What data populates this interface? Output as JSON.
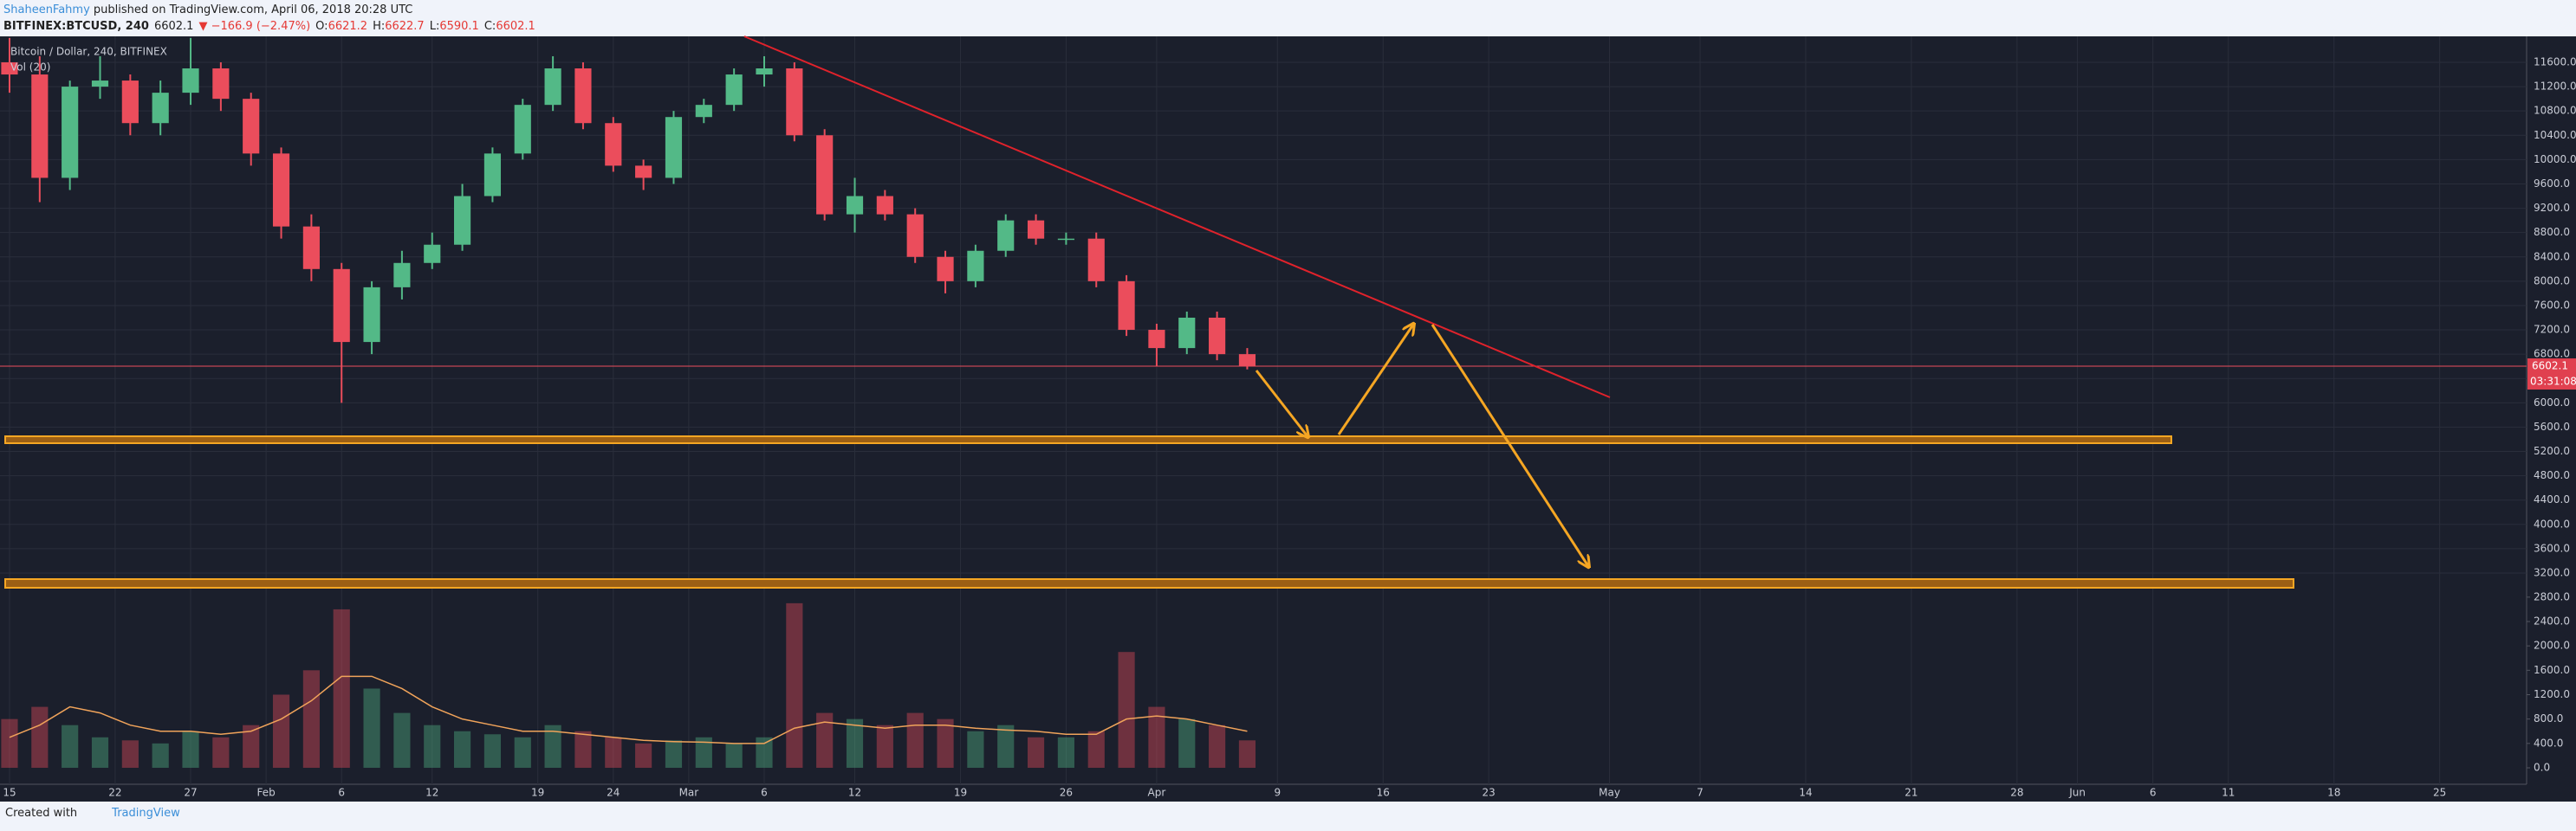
{
  "header": {
    "author": "ShaheenFahmy",
    "published": "published on TradingView.com, April 06, 2018 20:28 UTC",
    "symbol": "BITFINEX:BTCUSD, 240",
    "price": "6602.1",
    "change": "▼ −166.9 (−2.47%)",
    "ohlc": [
      {
        "k": "O:",
        "v": "6621.2"
      },
      {
        "k": "H:",
        "v": "6622.7"
      },
      {
        "k": "L:",
        "v": "6590.1"
      },
      {
        "k": "C:",
        "v": "6602.1"
      }
    ]
  },
  "chart_data": {
    "type": "candlestick",
    "title": "Bitcoin / Dollar, 240, BITFINEX",
    "up_color": "#53b987",
    "down_color": "#eb4d5c",
    "grid": true,
    "x": [
      0,
      2,
      4,
      6,
      8,
      10,
      12,
      14,
      16,
      18,
      20,
      22,
      24,
      26,
      28,
      30,
      32,
      34,
      36,
      38,
      40,
      42,
      44,
      46,
      48,
      50,
      52,
      54,
      56,
      58,
      60,
      62,
      64,
      66,
      68,
      70,
      72,
      74,
      76,
      78,
      80,
      82
    ],
    "open": [
      11600,
      11400,
      9700,
      11200,
      11300,
      10600,
      11100,
      11500,
      11000,
      10100,
      8900,
      8200,
      7000,
      7900,
      8300,
      8600,
      9400,
      10100,
      10900,
      11500,
      10600,
      9900,
      9700,
      10700,
      10900,
      11400,
      11500,
      10400,
      9100,
      9400,
      9100,
      8400,
      8000,
      8500,
      9000,
      8700,
      8700,
      8000,
      7200,
      6900,
      7400,
      6800
    ],
    "high": [
      12000,
      11700,
      11300,
      11700,
      11400,
      11300,
      12000,
      11600,
      11100,
      10200,
      9100,
      8300,
      8000,
      8500,
      8800,
      9600,
      10200,
      11000,
      11700,
      11600,
      10700,
      10000,
      10800,
      11000,
      11500,
      11700,
      11600,
      10500,
      9700,
      9500,
      9200,
      8500,
      8600,
      9100,
      9100,
      8800,
      8800,
      8100,
      7300,
      7500,
      7500,
      6900
    ],
    "low": [
      11100,
      9300,
      9500,
      11000,
      10400,
      10400,
      10900,
      10800,
      9900,
      8700,
      8000,
      6000,
      6800,
      7700,
      8200,
      8500,
      9300,
      10000,
      10800,
      10500,
      9800,
      9500,
      9600,
      10600,
      10800,
      11200,
      10300,
      9000,
      8800,
      9000,
      8300,
      7800,
      7900,
      8400,
      8600,
      8600,
      7900,
      7100,
      6600,
      6800,
      6700,
      6550
    ],
    "close": [
      11400,
      9700,
      11200,
      11300,
      10600,
      11100,
      11500,
      11000,
      10100,
      8900,
      8200,
      7000,
      7900,
      8300,
      8600,
      9400,
      10100,
      10900,
      11500,
      10600,
      9900,
      9700,
      10700,
      10900,
      11400,
      11500,
      10400,
      9100,
      9400,
      9100,
      8400,
      8000,
      8500,
      9000,
      8700,
      8700,
      8000,
      7200,
      6900,
      7400,
      6800,
      6600
    ],
    "volume": {
      "name": "Vol (20)",
      "axis": "y2",
      "ma_color": "#f0a35a",
      "values": [
        800,
        1000,
        700,
        500,
        450,
        400,
        600,
        500,
        700,
        1200,
        1600,
        2600,
        1300,
        900,
        700,
        600,
        550,
        500,
        700,
        600,
        500,
        400,
        450,
        500,
        400,
        500,
        2700,
        900,
        800,
        700,
        900,
        800,
        600,
        700,
        500,
        500,
        600,
        1900,
        1000,
        800,
        700,
        450
      ],
      "ma_values": [
        500,
        700,
        1000,
        900,
        700,
        600,
        600,
        550,
        600,
        800,
        1100,
        1500,
        1500,
        1300,
        1000,
        800,
        700,
        600,
        600,
        550,
        500,
        450,
        430,
        420,
        400,
        400,
        650,
        750,
        700,
        650,
        700,
        700,
        650,
        620,
        600,
        550,
        550,
        800,
        850,
        800,
        700,
        600
      ]
    },
    "last_price": 6602.1,
    "countdown": "03:31:08",
    "xlim": [
      -0.63,
      166.76
    ],
    "xticks": [
      {
        "value": 0,
        "label": "15"
      },
      {
        "value": 7,
        "label": "22"
      },
      {
        "value": 12,
        "label": "27"
      },
      {
        "value": 17,
        "label": "Feb"
      },
      {
        "value": 22,
        "label": "6"
      },
      {
        "value": 28,
        "label": "12"
      },
      {
        "value": 35,
        "label": "19"
      },
      {
        "value": 40,
        "label": "24"
      },
      {
        "value": 45,
        "label": "Mar"
      },
      {
        "value": 50,
        "label": "6"
      },
      {
        "value": 56,
        "label": "12"
      },
      {
        "value": 63,
        "label": "19"
      },
      {
        "value": 70,
        "label": "26"
      },
      {
        "value": 76,
        "label": "Apr"
      },
      {
        "value": 84,
        "label": "9"
      },
      {
        "value": 91,
        "label": "16"
      },
      {
        "value": 98,
        "label": "23"
      },
      {
        "value": 106,
        "label": "May"
      },
      {
        "value": 112,
        "label": "7"
      },
      {
        "value": 119,
        "label": "14"
      },
      {
        "value": 126,
        "label": "21"
      },
      {
        "value": 133,
        "label": "28"
      },
      {
        "value": 137,
        "label": "Jun"
      },
      {
        "value": 142,
        "label": "6"
      },
      {
        "value": 147,
        "label": "11"
      },
      {
        "value": 154,
        "label": "18"
      },
      {
        "value": 161,
        "label": "25"
      }
    ],
    "ylim": [
      -274,
      12027
    ],
    "yticks": [
      {
        "value": 3200,
        "label": "3200.0"
      },
      {
        "value": 3600,
        "label": "3600.0"
      },
      {
        "value": 4000,
        "label": "4000.0"
      },
      {
        "value": 4400,
        "label": "4400.0"
      },
      {
        "value": 4800,
        "label": "4800.0"
      },
      {
        "value": 5200,
        "label": "5200.0"
      },
      {
        "value": 5600,
        "label": "5600.0"
      },
      {
        "value": 6000,
        "label": "6000.0"
      },
      {
        "value": 6400,
        "label": "6400.0"
      },
      {
        "value": 6800,
        "label": "6800.0"
      },
      {
        "value": 7200,
        "label": "7200.0"
      },
      {
        "value": 7600,
        "label": "7600.0"
      },
      {
        "value": 8000,
        "label": "8000.0"
      },
      {
        "value": 8400,
        "label": "8400.0"
      },
      {
        "value": 8800,
        "label": "8800.0"
      },
      {
        "value": 9200,
        "label": "9200.0"
      },
      {
        "value": 9600,
        "label": "9600.0"
      },
      {
        "value": 10000,
        "label": "10000.0"
      },
      {
        "value": 10400,
        "label": "10400.0"
      },
      {
        "value": 10800,
        "label": "10800.0"
      },
      {
        "value": 11200,
        "label": "11200.0"
      },
      {
        "value": 11600,
        "label": "11600.0"
      }
    ],
    "y2lim": [
      -270,
      12000
    ],
    "y2ticks": [
      {
        "value": 0,
        "label": "0.0"
      },
      {
        "value": 400,
        "label": "400.0"
      },
      {
        "value": 800,
        "label": "800.0"
      },
      {
        "value": 1200,
        "label": "1200.0"
      },
      {
        "value": 1600,
        "label": "1600.0"
      },
      {
        "value": 2000,
        "label": "2000.0"
      },
      {
        "value": 2400,
        "label": "2400.0"
      },
      {
        "value": 2800,
        "label": "2800.0"
      }
    ]
  },
  "footer": {
    "created": "Created with",
    "brand": "TradingView"
  }
}
